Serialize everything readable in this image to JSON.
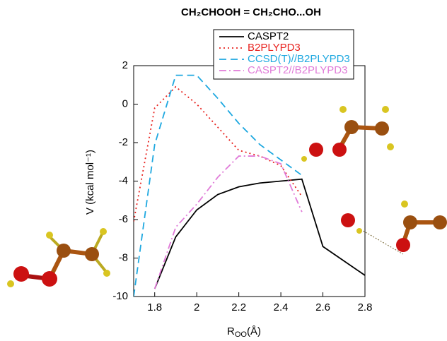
{
  "chart_data": {
    "type": "line",
    "title": "CH₂CHOOH = CH₂CHO...OH",
    "x_label": {
      "text": "R",
      "subscript": "OO",
      "unit": "(Å)"
    },
    "y_label": "V (kcal mol⁻¹)",
    "xlim": [
      1.7,
      2.8
    ],
    "xticks": [
      1.8,
      2,
      2.2,
      2.4,
      2.6,
      2.8
    ],
    "ylim": [
      -10,
      2
    ],
    "yticks": [
      2,
      0,
      -2,
      -4,
      -6,
      -8,
      -10
    ],
    "series": [
      {
        "name": "CASPT2",
        "color": "#000000",
        "dash": "solid",
        "x": [
          1.8,
          1.9,
          2.0,
          2.1,
          2.2,
          2.3,
          2.4,
          2.5,
          2.6,
          2.8
        ],
        "values": [
          -9.6,
          -6.9,
          -5.5,
          -4.7,
          -4.3,
          -4.1,
          -4.0,
          -3.9,
          -7.4,
          -8.9
        ]
      },
      {
        "name": "B2PLYPD3",
        "color": "#e8231f",
        "dash": "dotted",
        "x": [
          1.7,
          1.8,
          1.9,
          2.0,
          2.1,
          2.2,
          2.3,
          2.4,
          2.5
        ],
        "values": [
          -6.1,
          -0.2,
          0.9,
          0.0,
          -1.2,
          -2.4,
          -2.7,
          -3.2,
          -4.8
        ]
      },
      {
        "name": "CCSD(T)//B2PLYPD3",
        "color": "#1ea8e0",
        "dash": "dashed",
        "x": [
          1.7,
          1.8,
          1.9,
          2.0,
          2.1,
          2.2,
          2.3,
          2.4,
          2.5
        ],
        "values": [
          -10,
          -2.1,
          1.5,
          1.5,
          0.3,
          -1.0,
          -2.1,
          -2.9,
          -3.7
        ]
      },
      {
        "name": "CASPT2//B2PLYPD3",
        "color": "#e07ad8",
        "dash": "dashdot",
        "x": [
          1.8,
          1.9,
          2.0,
          2.1,
          2.2,
          2.3,
          2.4,
          2.5
        ],
        "values": [
          -9.6,
          -6.4,
          -5.2,
          -3.8,
          -2.7,
          -2.7,
          -3.1,
          -5.6
        ]
      }
    ]
  }
}
